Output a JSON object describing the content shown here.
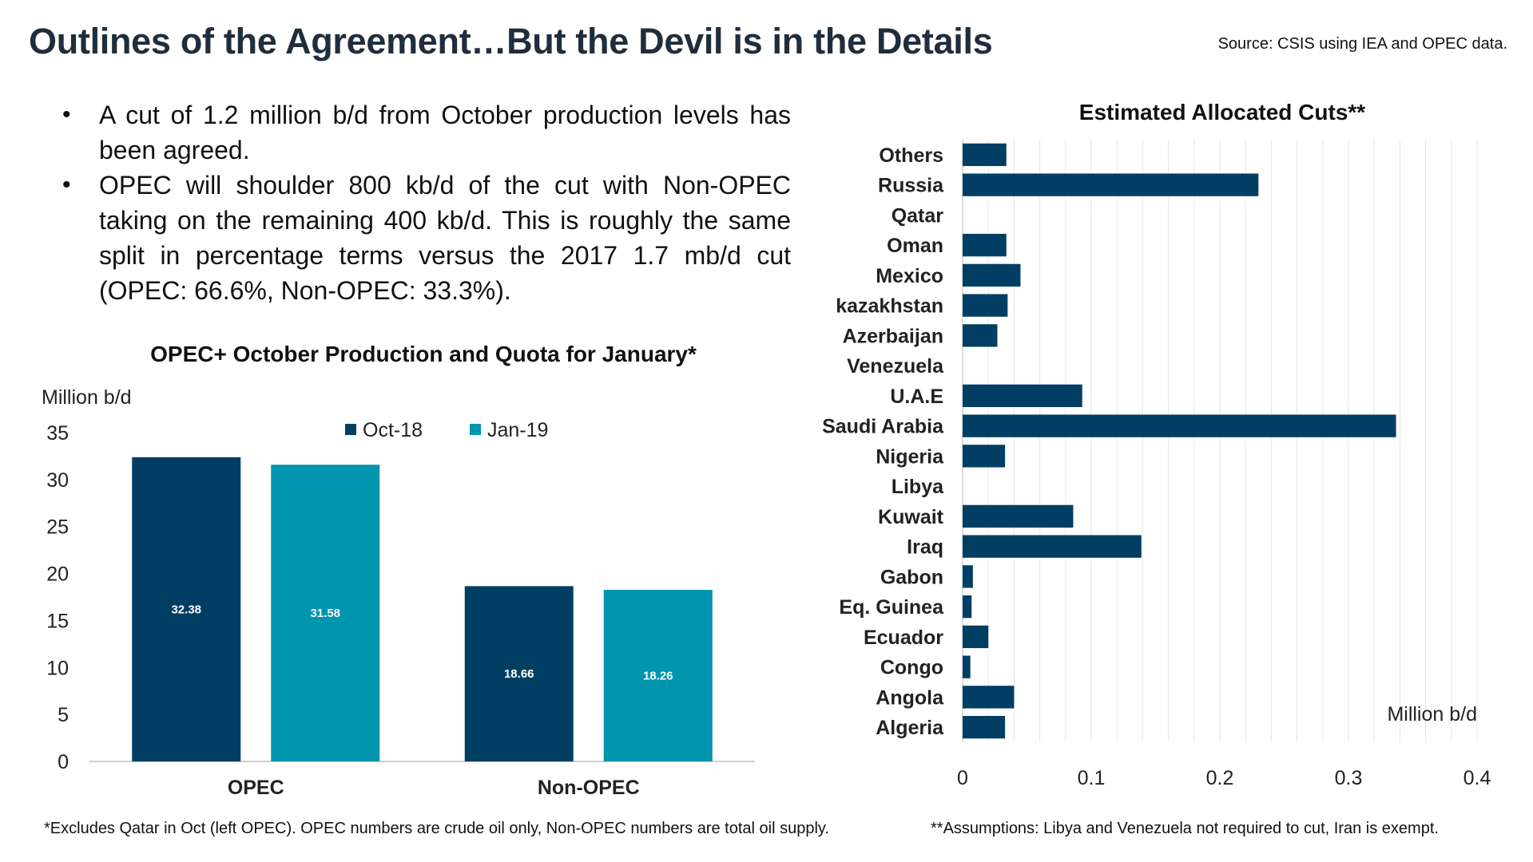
{
  "header": {
    "title": "Outlines of the Agreement…But the Devil is in the Details",
    "source": "Source: CSIS using IEA and OPEC data."
  },
  "bullets": [
    "A cut of 1.2 million b/d from October production levels has been agreed.",
    "OPEC will shoulder 800 kb/d of the cut with Non-OPEC taking on the remaining 400 kb/d. This is roughly the same split in percentage terms versus the 2017 1.7 mb/d cut (OPEC: 66.6%, Non-OPEC: 33.3%)."
  ],
  "bullet_symbol": "•",
  "footnotes": {
    "left": "*Excludes Qatar in Oct (left OPEC). OPEC numbers are crude oil only, Non-OPEC numbers are total oil supply.",
    "right": "**Assumptions: Libya and Venezuela not required to cut, Iran is exempt."
  },
  "colors": {
    "oct": "#003f63",
    "jan": "#0095ae",
    "gridline": "#e6e6e6",
    "axis": "#d0d0d0"
  },
  "chart_data": [
    {
      "type": "bar",
      "title": "OPEC+ October Production and Quota for January*",
      "ylabel": "Million b/d",
      "xlabel": "",
      "categories": [
        "OPEC",
        "Non-OPEC"
      ],
      "series": [
        {
          "name": "Oct-18",
          "values": [
            32.38,
            18.66
          ],
          "labels": [
            "32.38",
            "18.66"
          ]
        },
        {
          "name": "Jan-19",
          "values": [
            31.58,
            18.26
          ],
          "labels": [
            "31.58",
            "18.26"
          ]
        }
      ],
      "ylim": [
        0,
        35
      ],
      "yticks": [
        0,
        5,
        10,
        15,
        20,
        25,
        30,
        35
      ],
      "legend": "top-center",
      "grid": false
    },
    {
      "type": "bar",
      "orientation": "horizontal",
      "title": "Estimated Allocated Cuts**",
      "xlabel": "Million b/d",
      "categories": [
        "Others",
        "Russia",
        "Qatar",
        "Oman",
        "Mexico",
        "kazakhstan",
        "Azerbaijan",
        "Venezuela",
        "U.A.E",
        "Saudi Arabia",
        "Nigeria",
        "Libya",
        "Kuwait",
        "Iraq",
        "Gabon",
        "Eq. Guinea",
        "Ecuador",
        "Congo",
        "Angola",
        "Algeria"
      ],
      "values": [
        0.034,
        0.23,
        0,
        0.034,
        0.045,
        0.035,
        0.027,
        0,
        0.093,
        0.337,
        0.033,
        0,
        0.086,
        0.139,
        0.008,
        0.007,
        0.02,
        0.006,
        0.04,
        0.033
      ],
      "xlim": [
        0,
        0.4
      ],
      "xticks": [
        0,
        0.1,
        0.2,
        0.3,
        0.4
      ],
      "xtick_labels": [
        "0",
        "0.1",
        "0.2",
        "0.3",
        "0.4"
      ],
      "grid": true
    }
  ]
}
